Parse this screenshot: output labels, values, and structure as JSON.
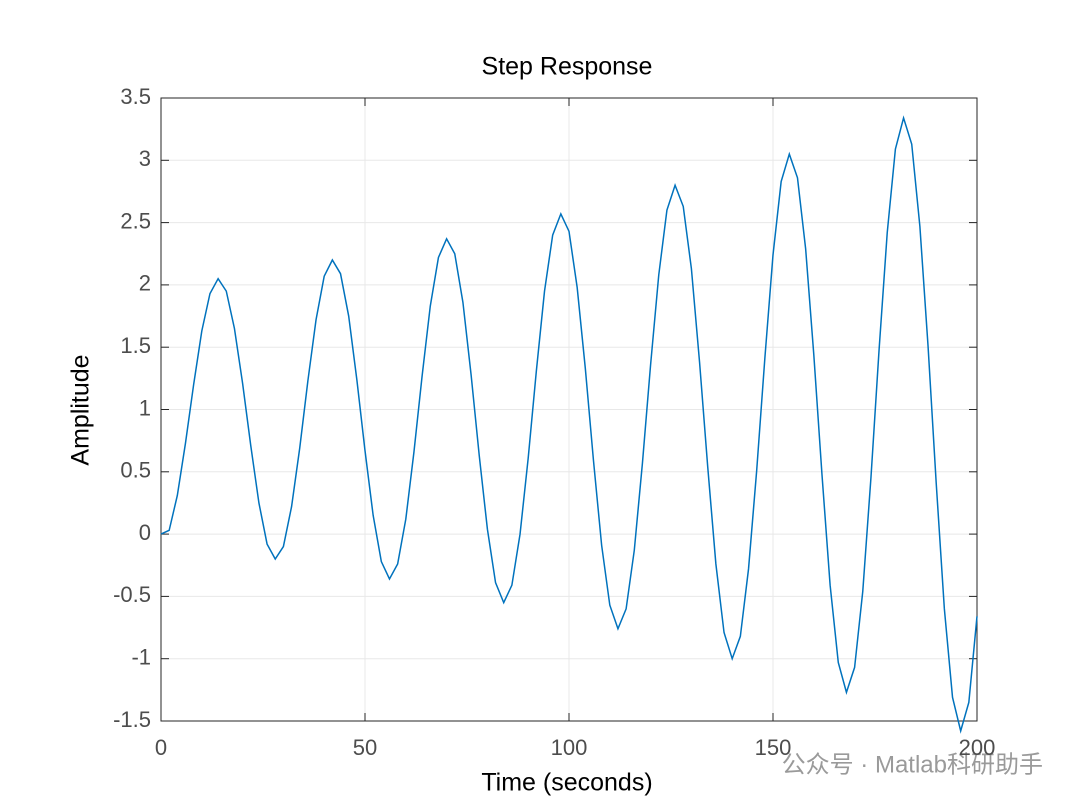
{
  "chart_data": {
    "type": "line",
    "title": "Step Response",
    "x_label": "Time (seconds)",
    "y_label": "Amplitude",
    "watermark": "公众号 · Matlab科研助手",
    "x": [
      0,
      2,
      4,
      6,
      8,
      10,
      12,
      14,
      16,
      18,
      20,
      22,
      24,
      26,
      28,
      30,
      32,
      34,
      36,
      38,
      40,
      42,
      44,
      46,
      48,
      50,
      52,
      54,
      56,
      58,
      60,
      62,
      64,
      66,
      68,
      70,
      72,
      74,
      76,
      78,
      80,
      82,
      84,
      86,
      88,
      90,
      92,
      94,
      96,
      98,
      100,
      102,
      104,
      106,
      108,
      110,
      112,
      114,
      116,
      118,
      120,
      122,
      124,
      126,
      128,
      130,
      132,
      134,
      136,
      138,
      140,
      142,
      144,
      146,
      148,
      150,
      152,
      154,
      156,
      158,
      160,
      162,
      164,
      166,
      168,
      170,
      172,
      174,
      176,
      178,
      180,
      182,
      184,
      186,
      188,
      190,
      192,
      194,
      196,
      198,
      200
    ],
    "series": [
      {
        "name": "Step Response",
        "color": "#0072bd",
        "values": [
          0,
          0.03,
          0.31,
          0.73,
          1.2,
          1.63,
          1.93,
          2.05,
          1.95,
          1.65,
          1.21,
          0.71,
          0.25,
          -0.08,
          -0.2,
          -0.1,
          0.22,
          0.69,
          1.23,
          1.72,
          2.07,
          2.2,
          2.09,
          1.75,
          1.24,
          0.67,
          0.15,
          -0.22,
          -0.36,
          -0.24,
          0.12,
          0.66,
          1.27,
          1.83,
          2.22,
          2.37,
          2.25,
          1.86,
          1.28,
          0.63,
          0.04,
          -0.39,
          -0.55,
          -0.41,
          0,
          0.61,
          1.31,
          1.95,
          2.4,
          2.57,
          2.43,
          1.98,
          1.33,
          0.59,
          -0.09,
          -0.57,
          -0.76,
          -0.6,
          -0.13,
          0.57,
          1.36,
          2.08,
          2.6,
          2.8,
          2.63,
          2.13,
          1.38,
          0.54,
          -0.24,
          -0.79,
          -1,
          -0.82,
          -0.28,
          0.51,
          1.41,
          2.24,
          2.83,
          3.05,
          2.86,
          2.29,
          1.44,
          0.48,
          -0.41,
          -1.03,
          -1.27,
          -1.07,
          -0.46,
          0.45,
          1.48,
          2.42,
          3.09,
          3.34,
          3.13,
          2.47,
          1.51,
          0.41,
          -0.6,
          -1.31,
          -1.58,
          -1.35,
          -0.66
        ]
      }
    ],
    "xlim": [
      0,
      200
    ],
    "xticks": [
      0,
      50,
      100,
      150,
      200
    ],
    "ylim": [
      -1.5,
      3.5
    ],
    "yticks": [
      -1.5,
      -1,
      -0.5,
      0,
      0.5,
      1,
      1.5,
      2,
      2.5,
      3,
      3.5
    ],
    "grid": true
  }
}
